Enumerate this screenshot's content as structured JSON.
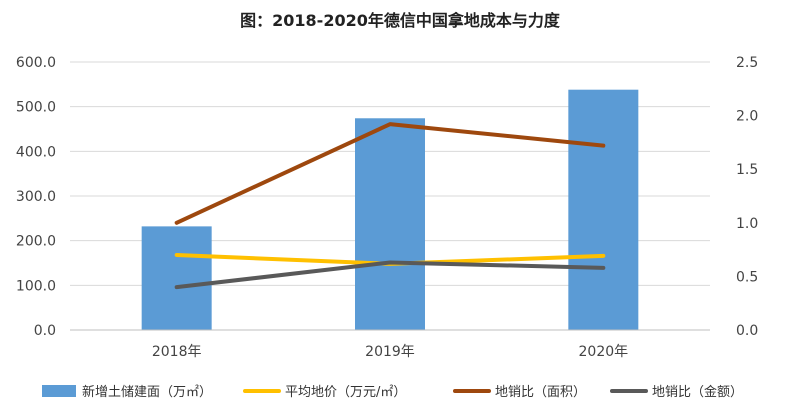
{
  "chart_data": {
    "type": "bar",
    "title": "图：2018-2020年德信中国拿地成本与力度",
    "categories": [
      "2018年",
      "2019年",
      "2020年"
    ],
    "y_left": {
      "min": 0,
      "max": 600,
      "ticks": [
        "0.0",
        "100.0",
        "200.0",
        "300.0",
        "400.0",
        "500.0",
        "600.0"
      ]
    },
    "y_right": {
      "min": 0,
      "max": 2.5,
      "ticks": [
        "0.0",
        "0.5",
        "1.0",
        "1.5",
        "2.0",
        "2.5"
      ]
    },
    "grid": true,
    "legend_position": "bottom",
    "series": [
      {
        "name": "新增土储建面（万㎡）",
        "type": "bar",
        "axis": "left",
        "color": "#5B9BD5",
        "values": [
          232,
          474,
          538
        ]
      },
      {
        "name": "平均地价（万元/㎡）",
        "type": "line",
        "axis": "left",
        "color": "#FFC000",
        "values": [
          168,
          148,
          166
        ]
      },
      {
        "name": "地销比（面积）",
        "type": "line",
        "axis": "right",
        "color": "#9E480E",
        "values": [
          1.0,
          1.92,
          1.72
        ]
      },
      {
        "name": "地销比（金额）",
        "type": "line",
        "axis": "right",
        "color": "#595959",
        "values": [
          0.4,
          0.63,
          0.58
        ]
      }
    ]
  }
}
